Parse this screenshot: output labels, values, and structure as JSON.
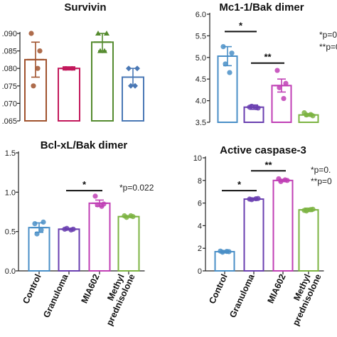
{
  "chart_data": [
    {
      "type": "bar",
      "title": "Survivin",
      "categories": [
        "Control",
        "Granuloma",
        "MIA602",
        "Methyl prednisolone"
      ],
      "values": [
        0.0825,
        0.08,
        0.0875,
        0.0775
      ],
      "errors": [
        0.005,
        0.0003,
        0.0025,
        0.0025
      ],
      "points": [
        [
          0.09,
          0.085,
          0.075,
          0.08
        ],
        [
          0.08,
          0.08,
          0.08,
          0.08
        ],
        [
          0.09,
          0.09,
          0.085,
          0.085
        ],
        [
          0.08,
          0.08,
          0.075,
          0.075
        ]
      ],
      "colors": [
        "#a0522d",
        "#c2185b",
        "#558b2f",
        "#4a78b5"
      ],
      "ylim": [
        0.065,
        0.09
      ],
      "yticks": [
        ".090",
        ".085",
        ".080",
        ".075",
        ".070",
        ".065"
      ],
      "significance": [],
      "pvalue_text": []
    },
    {
      "type": "bar",
      "title": "Mc1-1/Bak dimer",
      "categories": [
        "Control",
        "Granuloma",
        "MIA602",
        "Methyl prednisolone"
      ],
      "values": [
        5.03,
        3.85,
        4.35,
        3.67
      ],
      "errors": [
        0.22,
        0.05,
        0.15,
        0.03
      ],
      "points": [
        [
          5.25,
          5.1,
          4.85,
          4.65
        ],
        [
          3.85,
          3.83,
          3.87,
          3.84
        ],
        [
          4.7,
          4.4,
          4.3,
          4.05
        ],
        [
          3.72,
          3.65,
          3.67,
          3.68
        ]
      ],
      "colors": [
        "#4a8fc7",
        "#6a3fb0",
        "#c03fb5",
        "#7cb342"
      ],
      "ylim": [
        3.5,
        6.0
      ],
      "yticks": [
        "6.0",
        "5.5",
        "5.0",
        "4.5",
        "4.0",
        "3.5"
      ],
      "significance": [
        {
          "from": 0,
          "to": 1,
          "y": 5.6,
          "label": "*"
        },
        {
          "from": 1,
          "to": 2,
          "y": 4.87,
          "label": "**"
        }
      ],
      "pvalue_text": [
        "*p=0",
        "**p=0"
      ]
    },
    {
      "type": "bar",
      "title": "Bcl-xL/Bak dimer",
      "categories": [
        "Control",
        "Granuloma",
        "MIA602",
        "Methyl prednisolone"
      ],
      "values": [
        0.55,
        0.53,
        0.86,
        0.69
      ],
      "errors": [
        0.06,
        0.01,
        0.04,
        0.01
      ],
      "points": [
        [
          0.6,
          0.62,
          0.47,
          0.52
        ],
        [
          0.53,
          0.53,
          0.54,
          0.52
        ],
        [
          0.95,
          0.85,
          0.84,
          0.82
        ],
        [
          0.7,
          0.69,
          0.68,
          0.7
        ]
      ],
      "colors": [
        "#4a8fc7",
        "#6a3fb0",
        "#c03fb5",
        "#7cb342"
      ],
      "ylim": [
        0.0,
        1.5
      ],
      "yticks": [
        "1.5",
        "1.0",
        "0.5",
        "0.0"
      ],
      "significance": [
        {
          "from": 1,
          "to": 2,
          "y": 1.02,
          "label": "*"
        }
      ],
      "pvalue_text": [
        "*p=0.022"
      ]
    },
    {
      "type": "bar",
      "title": "Active caspase-3",
      "categories": [
        "Control",
        "Granuloma",
        "MIA602",
        "Methyl prednisolone"
      ],
      "values": [
        1.7,
        6.35,
        8.0,
        5.4
      ],
      "errors": [
        0.1,
        0.1,
        0.1,
        0.15
      ],
      "points": [
        [
          1.75,
          1.7,
          1.65,
          1.72
        ],
        [
          6.35,
          6.4,
          6.3,
          6.38
        ],
        [
          8.15,
          8.0,
          7.9,
          8.05
        ],
        [
          5.35,
          5.45,
          5.3,
          5.42
        ]
      ],
      "colors": [
        "#4a8fc7",
        "#6a3fb0",
        "#c03fb5",
        "#7cb342"
      ],
      "ylim": [
        0,
        10
      ],
      "yticks": [
        "10",
        "8",
        "6",
        "4",
        "2",
        "0"
      ],
      "significance": [
        {
          "from": 0,
          "to": 1,
          "y": 7.1,
          "label": "*"
        },
        {
          "from": 1,
          "to": 2,
          "y": 8.85,
          "label": "**"
        }
      ],
      "pvalue_text": [
        "*p=0.",
        "**p=0"
      ]
    }
  ],
  "x_labels": [
    "Control",
    "Granuloma",
    "MIA602",
    "Methyl",
    "prednisolone"
  ]
}
